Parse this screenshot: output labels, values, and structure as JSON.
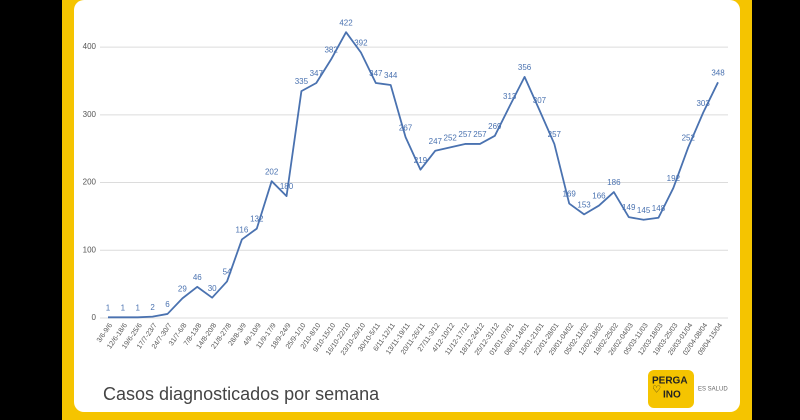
{
  "chart_data": {
    "type": "line",
    "title": "Casos diagnosticados por semana",
    "categories": [
      "3/6-9/6",
      "12/6-18/6",
      "19/6-25/6",
      "17/7-23/7",
      "24/7-30/7",
      "31/7-6/8",
      "7/8-13/8",
      "14/8-20/8",
      "21/8-27/8",
      "28/8-3/9",
      "4/9-10/9",
      "11/9-17/9",
      "18/9-24/9",
      "25/9-1/10",
      "2/10-8/10",
      "9/10-15/10",
      "16/10-22/10",
      "23/10-29/10",
      "30/10-5/11",
      "6/11-12/11",
      "13/11-19/11",
      "20/11-26/11",
      "27/11-3/12",
      "4/12-10/12",
      "11/12-17/12",
      "18/12-24/12",
      "25/12-31/12",
      "01/01-07/01",
      "08/01-14/01",
      "15/01-21/01",
      "22/01-28/01",
      "29/01-04/02",
      "05/02-11/02",
      "12/02-18/02",
      "19/02-25/02",
      "26/02-04/03",
      "05/03-11/03",
      "12/03-18/03",
      "19/03-25/03",
      "26/03-01/04",
      "02/04-08/04",
      "09/04-15/04"
    ],
    "values": [
      1,
      1,
      1,
      2,
      6,
      29,
      46,
      30,
      54,
      116,
      132,
      202,
      180,
      335,
      347,
      382,
      422,
      392,
      347,
      344,
      267,
      219,
      247,
      252,
      257,
      257,
      269,
      313,
      356,
      307,
      257,
      169,
      153,
      166,
      186,
      149,
      145,
      148,
      192,
      252,
      303,
      348
    ],
    "color": "#4a72b0",
    "ylim": [
      0,
      440
    ],
    "yticks": [
      0,
      100,
      200,
      300,
      400
    ],
    "grid": true
  },
  "logo": {
    "line1": "PERGA",
    "line2": "INO",
    "tagline": "ES SALUD"
  }
}
